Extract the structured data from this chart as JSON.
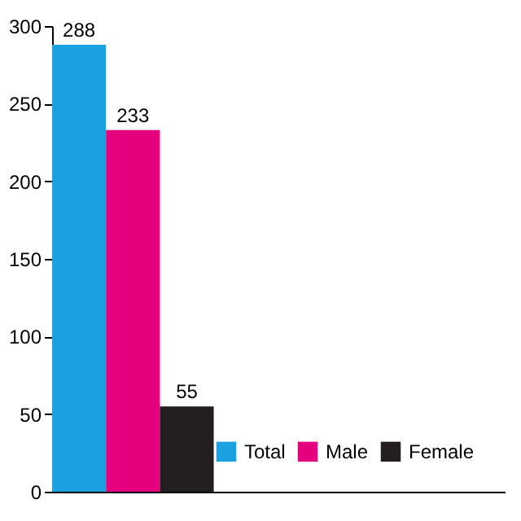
{
  "chart_data": {
    "type": "bar",
    "categories": [
      null
    ],
    "series": [
      {
        "name": "Total",
        "color": "#1ba1e2",
        "values": [
          288
        ]
      },
      {
        "name": "Male",
        "color": "#e5007d",
        "values": [
          233
        ]
      },
      {
        "name": "Female",
        "color": "#231f20",
        "values": [
          55
        ]
      }
    ],
    "ylim": [
      0,
      300
    ],
    "yticks": [
      0,
      50,
      100,
      150,
      200,
      250,
      300
    ],
    "data_labels": true,
    "legend": "bottom right",
    "grid": false
  }
}
